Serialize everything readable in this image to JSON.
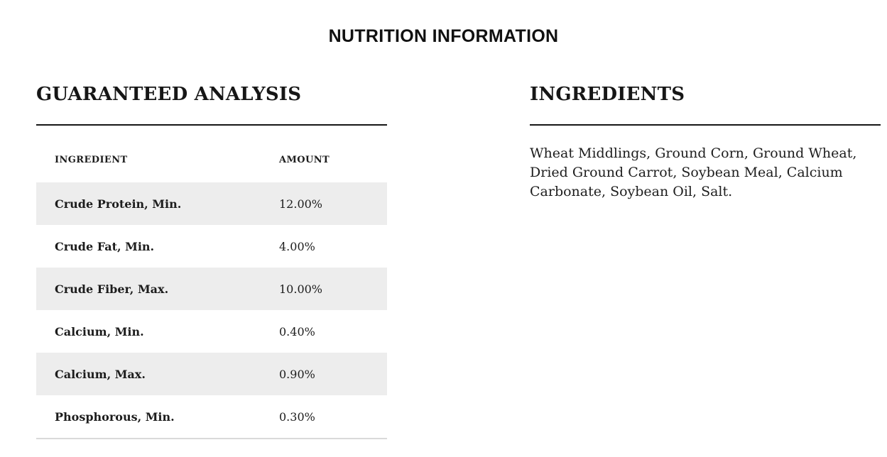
{
  "page": {
    "title": "NUTRITION INFORMATION"
  },
  "guaranteed_analysis": {
    "heading": "GUARANTEED ANALYSIS",
    "table": {
      "headers": {
        "ingredient": "INGREDIENT",
        "amount": "AMOUNT"
      },
      "rows": [
        {
          "ingredient": "Crude Protein, Min.",
          "amount": "12.00%"
        },
        {
          "ingredient": "Crude Fat, Min.",
          "amount": "4.00%"
        },
        {
          "ingredient": "Crude Fiber, Max.",
          "amount": "10.00%"
        },
        {
          "ingredient": "Calcium, Min.",
          "amount": "0.40%"
        },
        {
          "ingredient": "Calcium, Max.",
          "amount": "0.90%"
        },
        {
          "ingredient": "Phosphorous, Min.",
          "amount": "0.30%"
        }
      ]
    }
  },
  "ingredients": {
    "heading": "INGREDIENTS",
    "text": "Wheat Middlings, Ground Corn, Ground Wheat, Dried Ground Carrot, Soybean Meal, Calcium Carbonate, Soybean Oil, Salt.",
    "lines": [
      "Wheat Middlings, Ground Corn, Ground Wheat,",
      "Dried Ground Carrot, Soybean Meal, Calcium",
      "Carbonate, Soybean Oil, Salt."
    ]
  },
  "colors": {
    "background": "#ffffff",
    "heading_text": "#161616",
    "body_text": "#1d1d1d",
    "row_stripe": "#ededed",
    "section_divider": "#161616",
    "table_bottom_border": "#d9d9d9"
  }
}
